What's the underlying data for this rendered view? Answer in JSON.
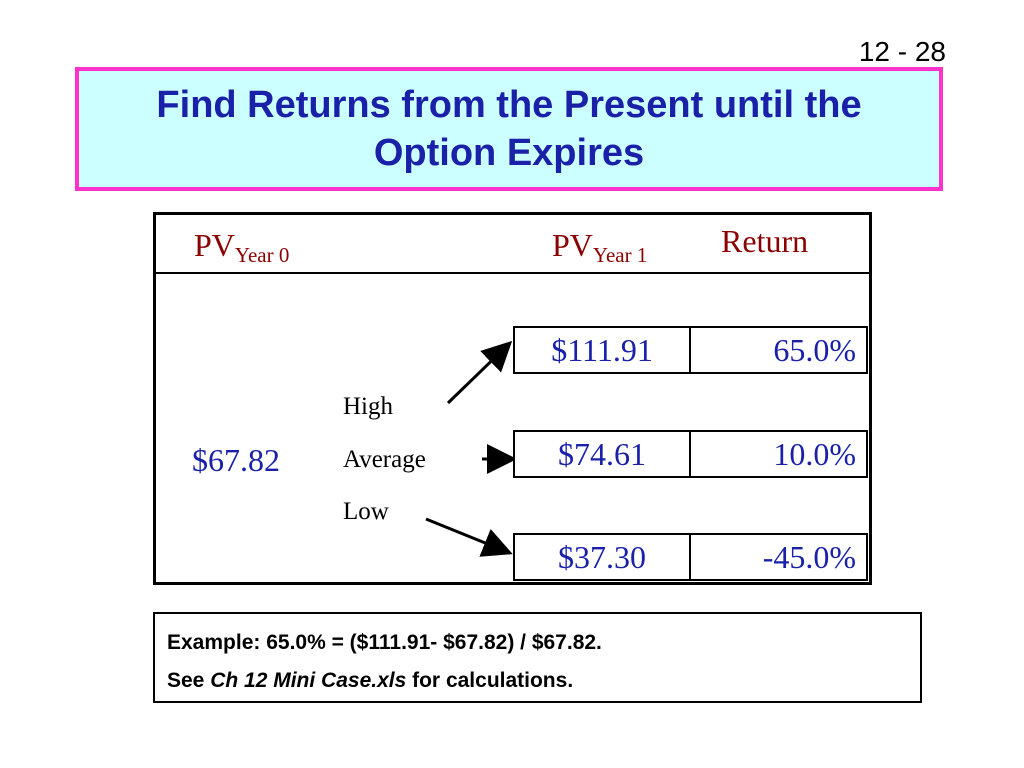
{
  "slide_number": "12 - 28",
  "title": {
    "line1": "Find Returns from the Present until the",
    "line2": "Option Expires"
  },
  "table": {
    "header": {
      "pv0_main": "PV",
      "pv0_sub": "Year 0",
      "pv1_main": "PV",
      "pv1_sub": "Year 1",
      "return": "Return"
    },
    "start_pv": "$67.82",
    "scenarios": [
      "High",
      "Average",
      "Low"
    ],
    "rows": [
      {
        "pv": "$111.91",
        "ret": "65.0%"
      },
      {
        "pv": "$74.61",
        "ret": "10.0%"
      },
      {
        "pv": "$37.30",
        "ret": "-45.0%"
      }
    ]
  },
  "note": {
    "line1": "Example: 65.0% = ($111.91- $67.82) / $67.82.",
    "line2_pre": "See ",
    "line2_file": "Ch 12 Mini Case.xls",
    "line2_post": " for calculations."
  },
  "colors": {
    "title_border": "#ff33cc",
    "title_fill": "#ccffff",
    "title_text": "#1a21a8",
    "header_text": "#8b0000",
    "value_text": "#1a21a8"
  }
}
